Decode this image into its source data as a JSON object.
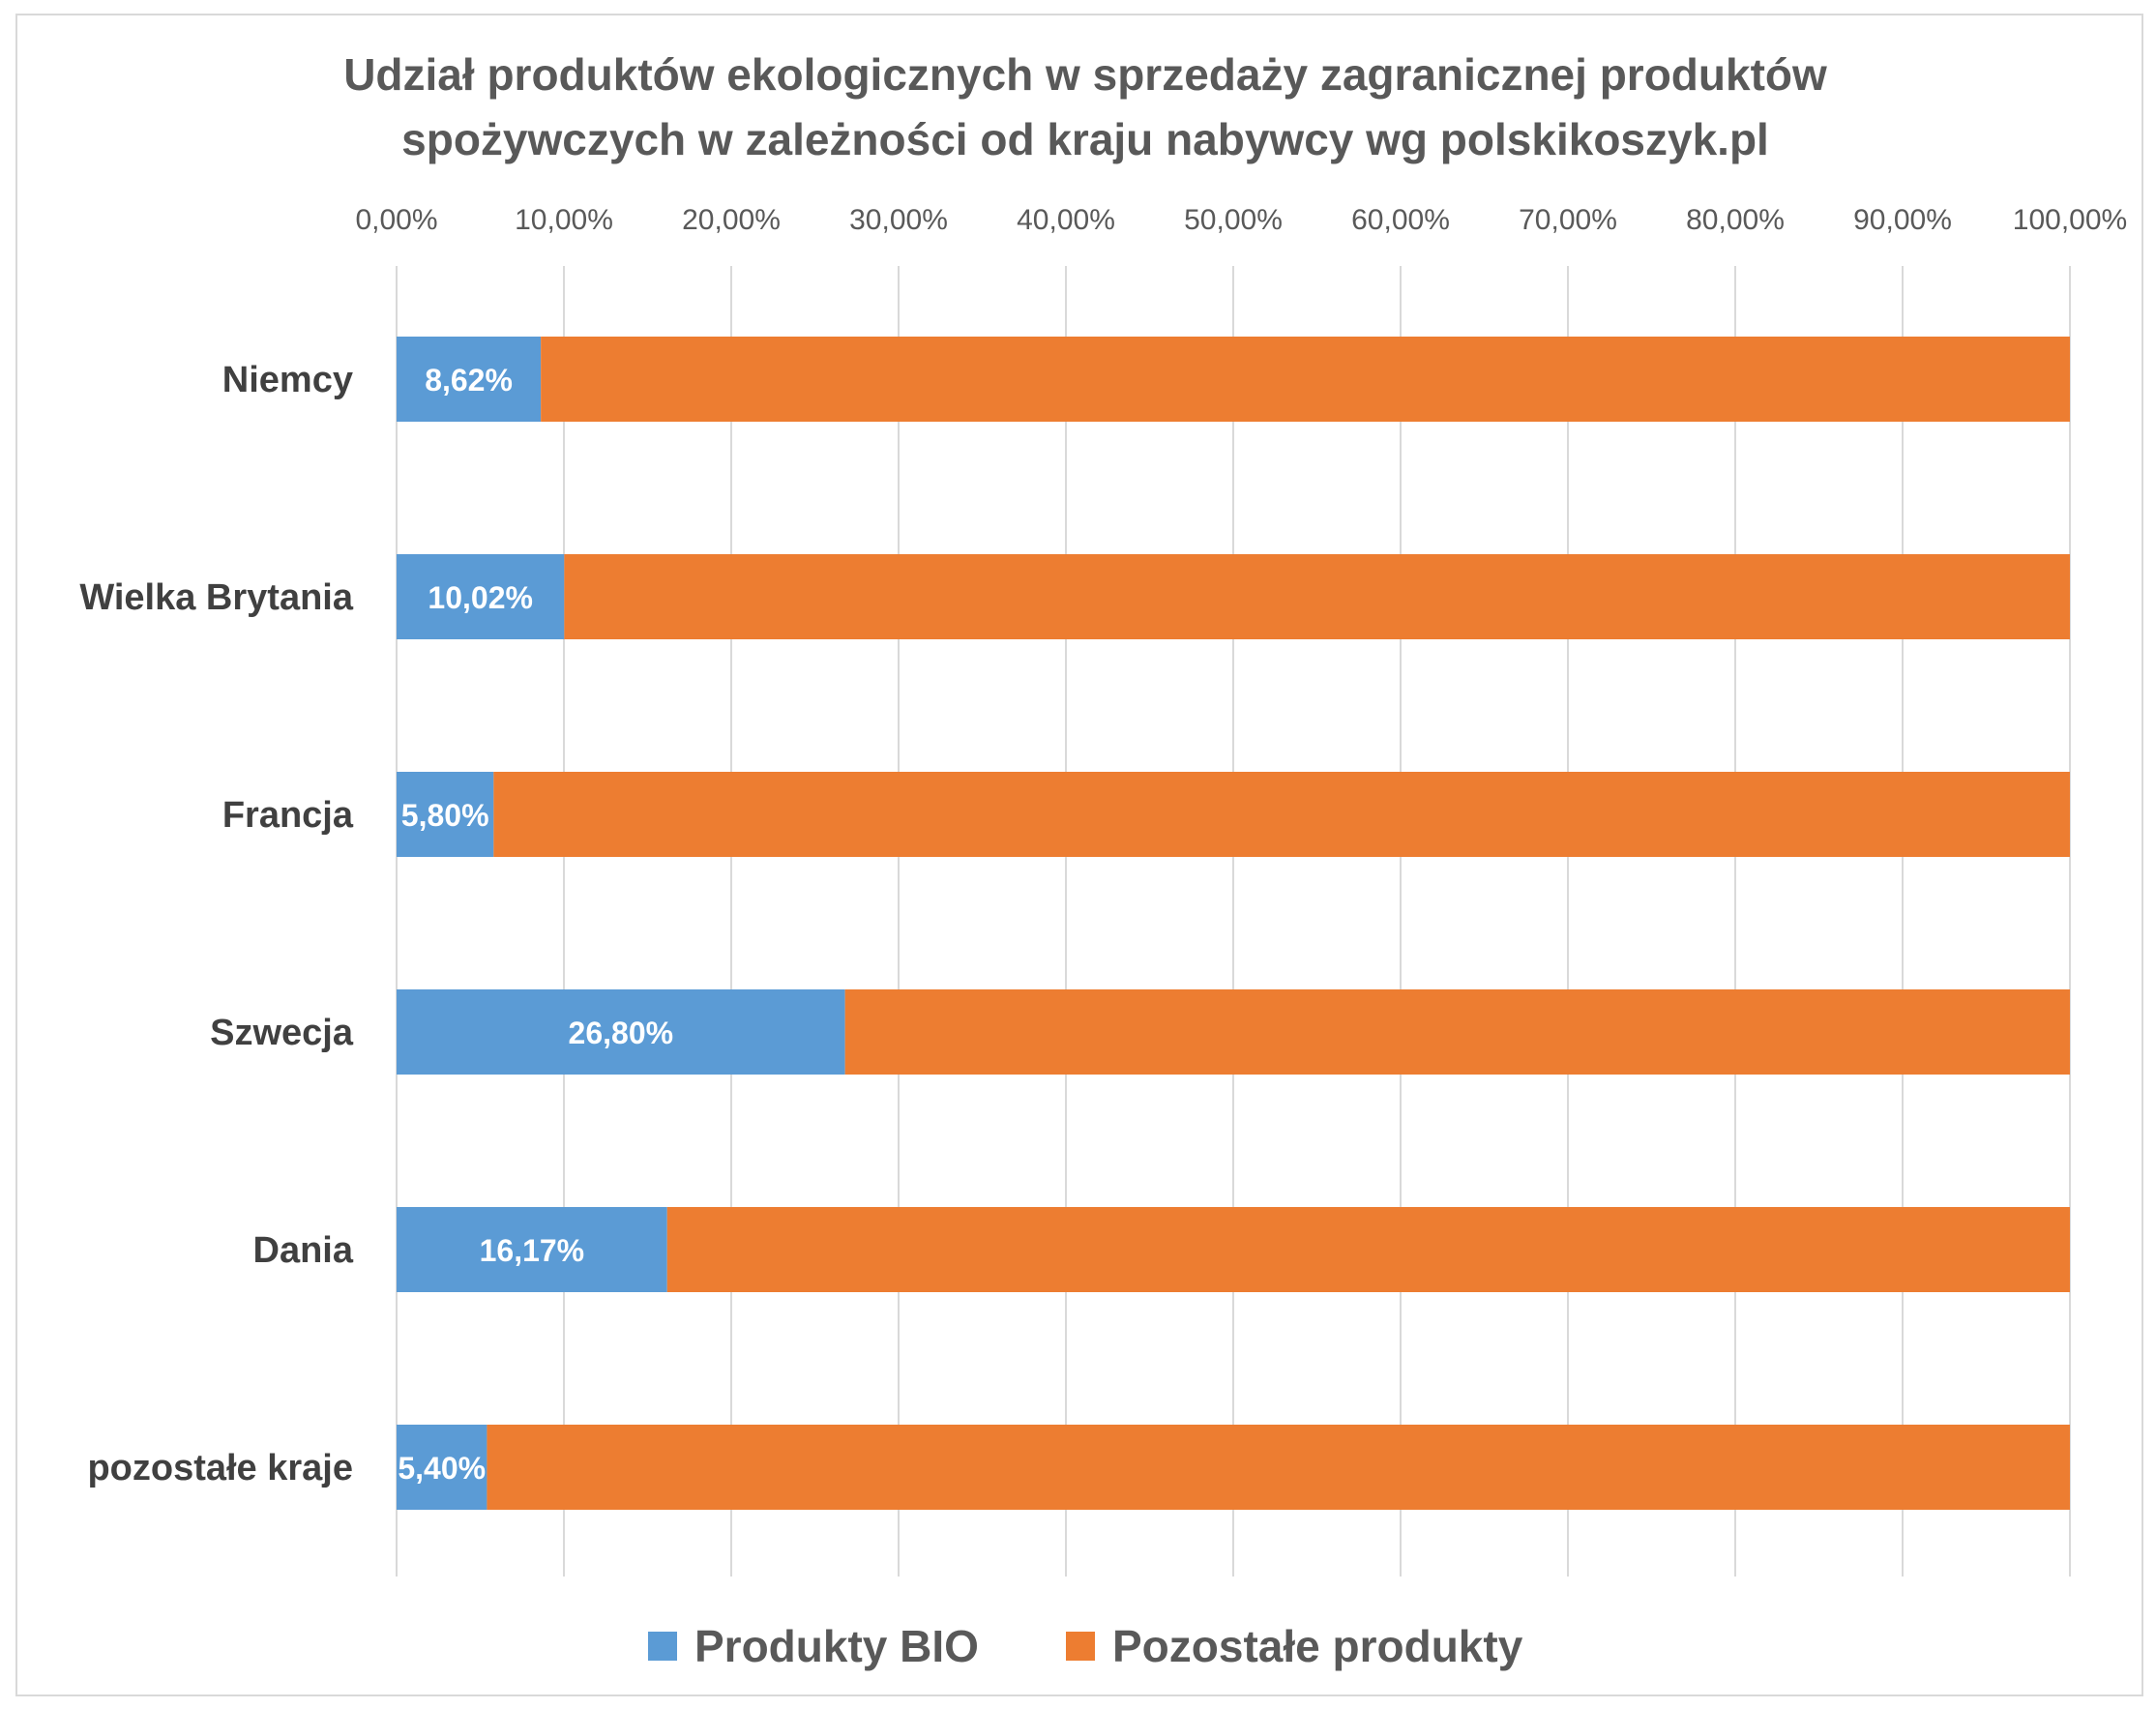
{
  "chart_data": {
    "type": "bar",
    "orientation": "horizontal",
    "stacked": "percent",
    "title": "Udział produktów ekologicznych w sprzedaży zagranicznej produktów spożywczych w zależności od kraju nabywcy wg polskikoszyk.pl",
    "title_lines": [
      "Udział produktów ekologicznych w sprzedaży zagranicznej produktów",
      "spożywczych w zależności od kraju nabywcy wg polskikoszyk.pl"
    ],
    "categories": [
      "Niemcy",
      "Wielka Brytania",
      "Francja",
      "Szwecja",
      "Dania",
      "pozostałe kraje"
    ],
    "series": [
      {
        "name": "Produkty BIO",
        "color": "#5b9bd5",
        "values": [
          8.62,
          10.02,
          5.8,
          26.8,
          16.17,
          5.4
        ],
        "data_labels": [
          "8,62%",
          "10,02%",
          "5,80%",
          "26,80%",
          "16,17%",
          "5,40%"
        ]
      },
      {
        "name": "Pozostałe produkty",
        "color": "#ed7d31",
        "values": [
          91.38,
          89.98,
          94.2,
          73.2,
          83.83,
          94.6
        ]
      }
    ],
    "x_ticks": [
      "0,00%",
      "10,00%",
      "20,00%",
      "30,00%",
      "40,00%",
      "50,00%",
      "60,00%",
      "70,00%",
      "80,00%",
      "90,00%",
      "100,00%"
    ],
    "xlim": [
      0,
      100
    ],
    "xaxis_position": "top",
    "grid": true,
    "legend_position": "bottom"
  }
}
